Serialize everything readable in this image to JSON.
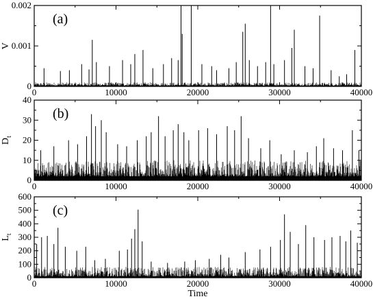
{
  "chart_data": [
    {
      "type": "line",
      "panel_label": "(a)",
      "xlabel": "",
      "ylabel": "V",
      "xlim": [
        0,
        40000
      ],
      "ylim": [
        0,
        0.002
      ],
      "x_ticks": [
        0,
        10000,
        20000,
        30000,
        40000
      ],
      "y_ticks": [
        0,
        0.001,
        0.002
      ],
      "x_tick_labels": [
        "0",
        "10000",
        "20000",
        "30000",
        "40000"
      ],
      "y_tick_labels": [
        "0",
        "0.001",
        "0.002"
      ],
      "baseline": 2e-05,
      "noise_level": 8e-05,
      "peaks": [
        [
          1200,
          0.00045
        ],
        [
          3200,
          0.00038
        ],
        [
          4300,
          0.0004
        ],
        [
          5800,
          0.00055
        ],
        [
          6700,
          0.00042
        ],
        [
          7100,
          0.00115
        ],
        [
          7600,
          0.0006
        ],
        [
          9200,
          0.0005
        ],
        [
          10800,
          0.00065
        ],
        [
          11800,
          0.00055
        ],
        [
          12300,
          0.0008
        ],
        [
          13300,
          0.0009
        ],
        [
          14500,
          0.00045
        ],
        [
          15800,
          0.00055
        ],
        [
          16800,
          0.0007
        ],
        [
          17600,
          0.00065
        ],
        [
          17950,
          0.002
        ],
        [
          18100,
          0.0013
        ],
        [
          19200,
          0.002
        ],
        [
          20500,
          0.00055
        ],
        [
          21700,
          0.0005
        ],
        [
          22300,
          0.0004
        ],
        [
          23800,
          0.00045
        ],
        [
          24700,
          0.0006
        ],
        [
          25500,
          0.00135
        ],
        [
          25800,
          0.00155
        ],
        [
          26300,
          0.00065
        ],
        [
          27300,
          0.0005
        ],
        [
          28300,
          0.0006
        ],
        [
          28900,
          0.002
        ],
        [
          29300,
          0.00055
        ],
        [
          30600,
          0.00065
        ],
        [
          31500,
          0.00095
        ],
        [
          31800,
          0.0014
        ],
        [
          33100,
          0.0005
        ],
        [
          34100,
          0.00045
        ],
        [
          34900,
          0.00175
        ],
        [
          36300,
          0.0004
        ],
        [
          37300,
          0.00025
        ],
        [
          38200,
          0.0003
        ],
        [
          39200,
          0.0009
        ]
      ]
    },
    {
      "type": "line",
      "panel_label": "(b)",
      "xlabel": "",
      "ylabel": "D_t",
      "xlim": [
        0,
        40000
      ],
      "ylim": [
        0,
        40
      ],
      "x_ticks": [
        0,
        10000,
        20000,
        30000,
        40000
      ],
      "y_ticks": [
        0,
        10,
        20,
        30,
        40
      ],
      "x_tick_labels": [
        "0",
        "10000",
        "20000",
        "30000",
        "40000"
      ],
      "y_tick_labels": [
        "0",
        "10",
        "20",
        "30",
        "40"
      ],
      "baseline": 2,
      "noise_level": 8,
      "peaks": [
        [
          800,
          15
        ],
        [
          2400,
          17
        ],
        [
          4200,
          20
        ],
        [
          5300,
          18
        ],
        [
          6400,
          22
        ],
        [
          7000,
          33
        ],
        [
          7500,
          27
        ],
        [
          8200,
          30
        ],
        [
          8800,
          24
        ],
        [
          10200,
          18
        ],
        [
          11300,
          17
        ],
        [
          12600,
          20
        ],
        [
          13700,
          22
        ],
        [
          14300,
          24
        ],
        [
          15200,
          32
        ],
        [
          16000,
          22
        ],
        [
          17000,
          25
        ],
        [
          17600,
          28
        ],
        [
          18300,
          24
        ],
        [
          18900,
          20
        ],
        [
          20100,
          25
        ],
        [
          21200,
          26
        ],
        [
          22300,
          23
        ],
        [
          23600,
          27
        ],
        [
          24500,
          25
        ],
        [
          25300,
          32
        ],
        [
          26200,
          21
        ],
        [
          27700,
          16
        ],
        [
          28800,
          20
        ],
        [
          30200,
          13
        ],
        [
          31800,
          15
        ],
        [
          33400,
          14
        ],
        [
          34500,
          17
        ],
        [
          35400,
          21
        ],
        [
          36600,
          16
        ],
        [
          37700,
          15
        ],
        [
          38900,
          25
        ],
        [
          39700,
          15
        ]
      ]
    },
    {
      "type": "line",
      "panel_label": "(c)",
      "xlabel": "Time",
      "ylabel": "L_t",
      "xlim": [
        0,
        40000
      ],
      "ylim": [
        0,
        600
      ],
      "x_ticks": [
        0,
        10000,
        20000,
        30000,
        40000
      ],
      "y_ticks": [
        0,
        100,
        200,
        300,
        400,
        500,
        600
      ],
      "x_tick_labels": [
        "0",
        "10000",
        "20000",
        "30000",
        "40000"
      ],
      "y_tick_labels": [
        "0",
        "100",
        "200",
        "300",
        "400",
        "500",
        "600"
      ],
      "baseline": 10,
      "noise_level": 70,
      "peaks": [
        [
          300,
          250
        ],
        [
          900,
          300
        ],
        [
          1600,
          310
        ],
        [
          2400,
          250
        ],
        [
          2900,
          370
        ],
        [
          3800,
          230
        ],
        [
          5200,
          200
        ],
        [
          6300,
          230
        ],
        [
          7400,
          130
        ],
        [
          8700,
          140
        ],
        [
          10400,
          200
        ],
        [
          11400,
          210
        ],
        [
          11900,
          290
        ],
        [
          12300,
          360
        ],
        [
          12700,
          505
        ],
        [
          13200,
          270
        ],
        [
          14300,
          120
        ],
        [
          16300,
          110
        ],
        [
          18400,
          120
        ],
        [
          19700,
          130
        ],
        [
          21400,
          140
        ],
        [
          22800,
          170
        ],
        [
          23800,
          150
        ],
        [
          25800,
          190
        ],
        [
          27600,
          210
        ],
        [
          28900,
          230
        ],
        [
          30100,
          280
        ],
        [
          30600,
          470
        ],
        [
          31300,
          340
        ],
        [
          32300,
          250
        ],
        [
          33200,
          390
        ],
        [
          34200,
          300
        ],
        [
          35500,
          280
        ],
        [
          36400,
          300
        ],
        [
          37400,
          310
        ],
        [
          38100,
          270
        ],
        [
          38700,
          350
        ],
        [
          39500,
          260
        ]
      ]
    }
  ]
}
